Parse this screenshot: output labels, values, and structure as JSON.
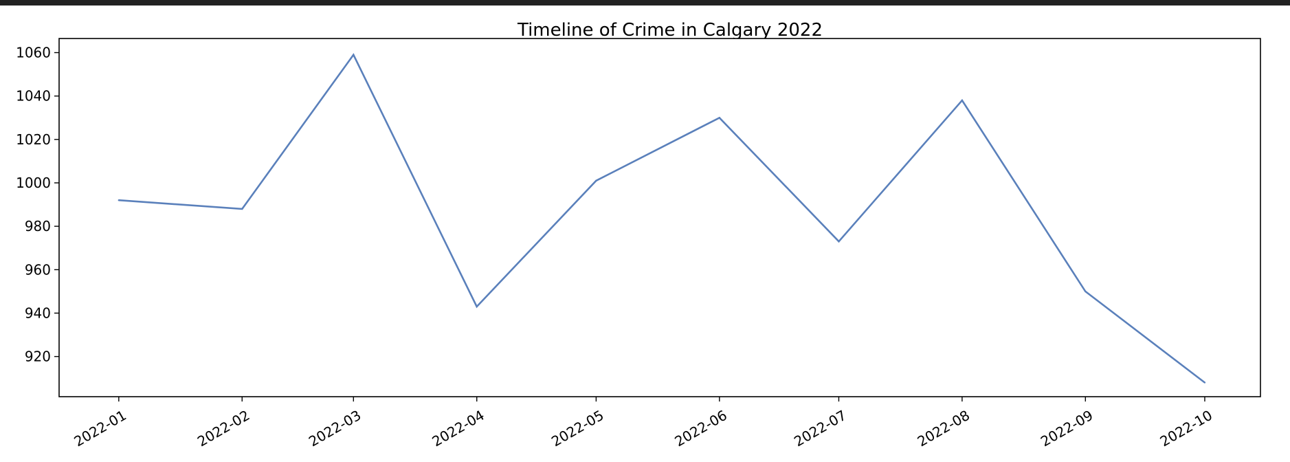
{
  "chart_data": {
    "type": "line",
    "title": "Timeline of Crime in Calgary 2022",
    "xlabel": "",
    "ylabel": "",
    "x": [
      "2022-01-01",
      "2022-02-01",
      "2022-03-01",
      "2022-04-01",
      "2022-05-01",
      "2022-06-01",
      "2022-07-01",
      "2022-08-01",
      "2022-09-01",
      "2022-10-01"
    ],
    "x_tick_labels": [
      "2022-01",
      "2022-02",
      "2022-03",
      "2022-04",
      "2022-05",
      "2022-06",
      "2022-07",
      "2022-08",
      "2022-09",
      "2022-10"
    ],
    "series": [
      {
        "values": [
          992,
          988,
          1059,
          943,
          1001,
          1030,
          973,
          1038,
          950,
          908
        ]
      }
    ],
    "y_ticks": [
      920,
      940,
      960,
      980,
      1000,
      1020,
      1040,
      1060
    ],
    "ylim": [
      901.5,
      1066.5
    ],
    "xlim": [
      "2021-12-17",
      "2022-10-15"
    ],
    "grid": false,
    "line_color": "#5a80bb"
  }
}
